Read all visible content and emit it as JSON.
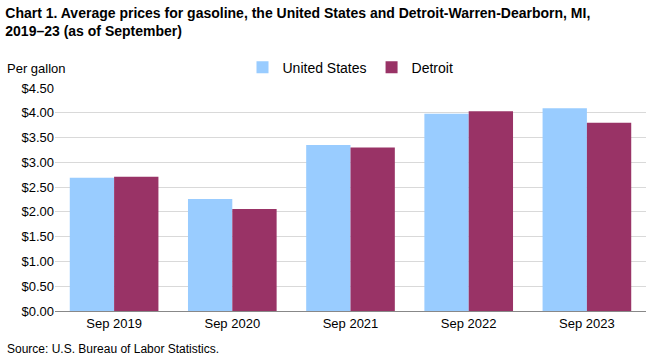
{
  "chart_data": {
    "type": "bar",
    "title": [
      "Chart 1. Average prices for gasoline, the United States and Detroit-Warren-Dearborn, MI,",
      "2019–23 (as of September)"
    ],
    "y_label": "Per gallon",
    "source": "Source: U.S. Bureau of Labor Statistics.",
    "categories": [
      "Sep 2019",
      "Sep 2020",
      "Sep 2021",
      "Sep 2022",
      "Sep 2023"
    ],
    "series": [
      {
        "name": "United States",
        "color": "#99ccff",
        "values": [
          2.69,
          2.26,
          3.35,
          3.98,
          4.09
        ]
      },
      {
        "name": "Detroit",
        "color": "#993366",
        "values": [
          2.71,
          2.06,
          3.3,
          4.03,
          3.8
        ]
      }
    ],
    "ylim": [
      0,
      4.5
    ],
    "yticks": [
      {
        "value": 0,
        "label": "$0.00"
      },
      {
        "value": 0.5,
        "label": "$0.50"
      },
      {
        "value": 1,
        "label": "$1.00"
      },
      {
        "value": 1.5,
        "label": "$1.50"
      },
      {
        "value": 2,
        "label": "$2.00"
      },
      {
        "value": 2.5,
        "label": "$2.50"
      },
      {
        "value": 3,
        "label": "$3.00"
      },
      {
        "value": 3.5,
        "label": "$3.50"
      },
      {
        "value": 4,
        "label": "$4.00"
      },
      {
        "value": 4.5,
        "label": "$4.50"
      }
    ],
    "grid": true,
    "legend": "top"
  }
}
